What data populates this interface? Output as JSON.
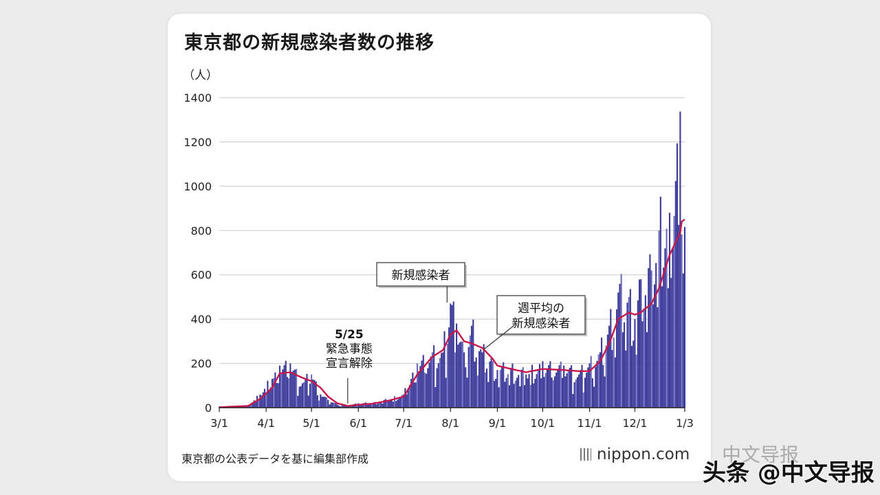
{
  "title": "東京都の新規感染者数の推移",
  "source": "東京都の公表データを基に編集部作成",
  "brand": "nippon.com",
  "watermark": "头条 @中文导报",
  "watermark_back": "中文导报",
  "colors": {
    "bar": "#3b3a99",
    "bar_light": "#6c6cc0",
    "line": "#c8174a",
    "grid": "#c8c8c8"
  },
  "chart_data": {
    "type": "bar",
    "unit": "（人）",
    "ylim": [
      0,
      1400
    ],
    "yticks": [
      0,
      200,
      400,
      600,
      800,
      1000,
      1200,
      1400
    ],
    "xticks": [
      "3/1",
      "4/1",
      "5/1",
      "6/1",
      "7/1",
      "8/1",
      "9/1",
      "10/1",
      "11/1",
      "12/1",
      "1/3"
    ],
    "series": [
      {
        "name": "新規感染者",
        "type": "bar"
      },
      {
        "name": "週平均の新規感染者",
        "type": "line"
      }
    ],
    "annotations": [
      {
        "text": [
          "5/25",
          "緊急事態",
          "宣言解除"
        ],
        "x": "5/25"
      },
      {
        "text": [
          "新規感染者"
        ],
        "x": "8/1"
      },
      {
        "text": [
          "週平均の",
          "新規感染者"
        ],
        "x": "9/1"
      }
    ],
    "anchors": [
      [
        "3/1",
        5,
        2
      ],
      [
        "3/20",
        10,
        8
      ],
      [
        "3/28",
        60,
        40
      ],
      [
        "4/5",
        130,
        90
      ],
      [
        "4/10",
        190,
        155
      ],
      [
        "4/17",
        200,
        160
      ],
      [
        "4/25",
        110,
        135
      ],
      [
        "5/1",
        150,
        120
      ],
      [
        "5/7",
        60,
        90
      ],
      [
        "5/12",
        35,
        50
      ],
      [
        "5/18",
        15,
        20
      ],
      [
        "5/25",
        8,
        8
      ],
      [
        "6/1",
        20,
        13
      ],
      [
        "6/10",
        20,
        18
      ],
      [
        "6/20",
        35,
        30
      ],
      [
        "7/1",
        60,
        50
      ],
      [
        "7/10",
        200,
        150
      ],
      [
        "7/20",
        250,
        230
      ],
      [
        "7/27",
        250,
        260
      ],
      [
        "8/1",
        470,
        330
      ],
      [
        "8/5",
        380,
        350
      ],
      [
        "8/10",
        250,
        300
      ],
      [
        "8/15",
        370,
        290
      ],
      [
        "8/22",
        250,
        270
      ],
      [
        "8/29",
        210,
        220
      ],
      [
        "9/1",
        170,
        190
      ],
      [
        "9/10",
        180,
        175
      ],
      [
        "9/20",
        150,
        160
      ],
      [
        "10/1",
        210,
        175
      ],
      [
        "10/15",
        190,
        170
      ],
      [
        "10/25",
        150,
        165
      ],
      [
        "11/1",
        200,
        165
      ],
      [
        "11/8",
        250,
        210
      ],
      [
        "11/14",
        370,
        290
      ],
      [
        "11/20",
        520,
        400
      ],
      [
        "11/27",
        500,
        430
      ],
      [
        "12/1",
        400,
        420
      ],
      [
        "12/5",
        580,
        430
      ],
      [
        "12/12",
        620,
        470
      ],
      [
        "12/17",
        800,
        540
      ],
      [
        "12/24",
        880,
        690
      ],
      [
        "12/31",
        1337,
        790
      ],
      [
        "1/1",
        783,
        840
      ],
      [
        "1/3",
        816,
        850
      ]
    ]
  }
}
